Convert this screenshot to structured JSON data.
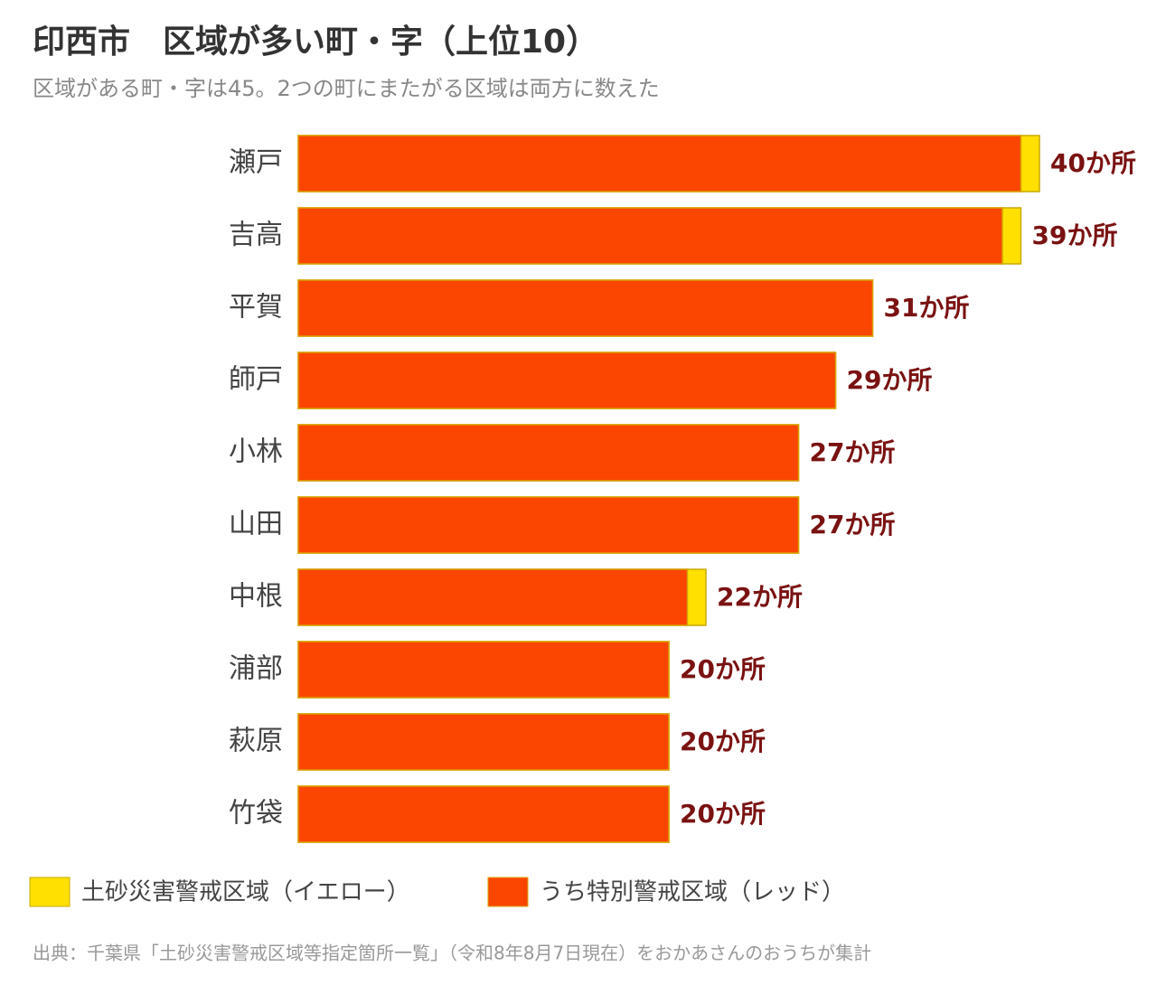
{
  "chart_data": {
    "type": "bar",
    "title": "印西市　区域が多い町・字（上位10）",
    "subtitle": "区域がある町・字は45。2つの町にまたがる区域は両方に数えた",
    "categories": [
      "瀬戸",
      "吉高",
      "平賀",
      "師戸",
      "小林",
      "山田",
      "中根",
      "浦部",
      "萩原",
      "竹袋"
    ],
    "series": [
      {
        "name": "土砂災害警戒区域（イエロー）",
        "color": "#ffe000",
        "values": [
          40,
          39,
          31,
          29,
          27,
          27,
          22,
          20,
          20,
          20
        ],
        "value_labels": [
          "40か所",
          "39か所",
          "31か所",
          "29か所",
          "27か所",
          "27か所",
          "22か所",
          "20か所",
          "20か所",
          "20か所"
        ]
      },
      {
        "name": "うち特別警戒区域（レッド）",
        "color": "#fa4600",
        "values": [
          39,
          38,
          31,
          29,
          27,
          27,
          21,
          20,
          20,
          20
        ]
      }
    ],
    "xlim": [
      0,
      40
    ],
    "source": "出典：千葉県「土砂災害警戒区域等指定箇所一覧」（令和8年8月7日現在）をおかあさんのおうちが集計"
  }
}
